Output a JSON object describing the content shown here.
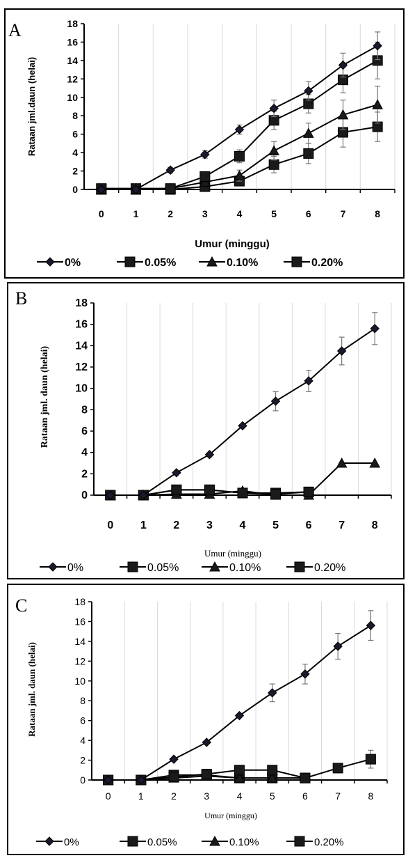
{
  "panels": [
    {
      "label": "A",
      "chart_data": {
        "type": "line",
        "ylabel": "Rataan jml.daun (helai)",
        "xlabel": "Umur (minggu)",
        "x": [
          0,
          1,
          2,
          3,
          4,
          5,
          6,
          7,
          8
        ],
        "yticks": [
          "0",
          "2",
          "4",
          "6",
          "8",
          "10",
          "12",
          "14",
          "16",
          "18"
        ],
        "ylim": [
          0,
          18
        ],
        "grid": "vertical",
        "legend_position": "bottom",
        "series": [
          {
            "name": "0%",
            "marker": "diamond",
            "values": [
              0,
              0,
              2.1,
              3.8,
              6.5,
              8.8,
              10.7,
              13.5,
              15.6
            ],
            "errors": [
              0,
              0,
              0.3,
              0.4,
              0.5,
              0.9,
              1.0,
              1.3,
              1.5
            ]
          },
          {
            "name": "0.05%",
            "marker": "square",
            "values": [
              0.1,
              0.1,
              0.1,
              1.4,
              3.6,
              7.5,
              9.3,
              11.9,
              14.0
            ],
            "errors": [
              0,
              0,
              0,
              0.4,
              0.7,
              1.0,
              1.0,
              1.4,
              2.0
            ]
          },
          {
            "name": "0.10%",
            "marker": "triangle",
            "values": [
              0,
              0,
              0.1,
              0.8,
              1.5,
              4.2,
              6.1,
              8.1,
              9.2
            ],
            "errors": [
              0,
              0,
              0,
              0.3,
              0.6,
              1.0,
              1.1,
              1.6,
              2.0
            ]
          },
          {
            "name": "0.20%",
            "marker": "square",
            "values": [
              0,
              0,
              0,
              0.3,
              0.9,
              2.7,
              3.9,
              6.2,
              6.8
            ],
            "errors": [
              0,
              0,
              0,
              0.2,
              0.5,
              0.9,
              1.1,
              1.6,
              1.6
            ]
          }
        ]
      }
    },
    {
      "label": "B",
      "chart_data": {
        "type": "line",
        "ylabel": "Rataan jml. daun (helai)",
        "xlabel": "Umur (minggu)",
        "x": [
          0,
          1,
          2,
          3,
          4,
          5,
          6,
          7,
          8
        ],
        "yticks": [
          "0",
          "2",
          "4",
          "6",
          "8",
          "10",
          "12",
          "14",
          "16",
          "18"
        ],
        "ylim": [
          0,
          18
        ],
        "grid": "vertical",
        "legend_position": "bottom",
        "series": [
          {
            "name": "0%",
            "marker": "diamond",
            "values": [
              0,
              0,
              2.1,
              3.8,
              6.5,
              8.8,
              10.7,
              13.5,
              15.6
            ],
            "errors": [
              0,
              0,
              0,
              0,
              0,
              0.9,
              1.0,
              1.3,
              1.5
            ]
          },
          {
            "name": "0.05%",
            "marker": "square",
            "values": [
              0,
              0,
              0.5,
              0.5,
              0.2,
              0.1,
              0.3,
              null,
              null
            ],
            "errors": [
              0,
              0,
              0,
              0,
              0,
              0,
              0,
              0,
              0
            ]
          },
          {
            "name": "0.10%",
            "marker": "triangle",
            "values": [
              0,
              0,
              0.1,
              0.1,
              0.4,
              0,
              0,
              3.0,
              3.0
            ],
            "errors": [
              0,
              0,
              0,
              0,
              0,
              0,
              0,
              0,
              0
            ]
          },
          {
            "name": "0.20%",
            "marker": "square",
            "values": [
              0,
              0,
              0.5,
              0.5,
              0.2,
              0.2,
              0.3,
              null,
              null
            ],
            "errors": [
              0,
              0,
              0,
              0,
              0,
              0,
              0,
              0,
              0
            ]
          }
        ]
      }
    },
    {
      "label": "C",
      "chart_data": {
        "type": "line",
        "ylabel": "Rataan jml. daun (helai)",
        "xlabel": "Umur (minggu)",
        "x": [
          0,
          1,
          2,
          3,
          4,
          5,
          6,
          7,
          8
        ],
        "yticks": [
          "0",
          "2",
          "4",
          "6",
          "8",
          "10",
          "12",
          "14",
          "16",
          "18"
        ],
        "ylim": [
          0,
          18
        ],
        "grid": "vertical",
        "legend_position": "bottom",
        "series": [
          {
            "name": "0%",
            "marker": "diamond",
            "values": [
              0,
              0,
              2.1,
              3.8,
              6.5,
              8.8,
              10.7,
              13.5,
              15.6
            ],
            "errors": [
              0,
              0,
              0,
              0,
              0,
              0.9,
              1.0,
              1.3,
              1.5
            ]
          },
          {
            "name": "0.05%",
            "marker": "square",
            "values": [
              0,
              0,
              0.3,
              0.6,
              1.0,
              1.0,
              0.2,
              1.2,
              2.1
            ],
            "errors": [
              0,
              0,
              0,
              0,
              0,
              0,
              0,
              0,
              0.9
            ]
          },
          {
            "name": "0.10%",
            "marker": "triangle",
            "values": [
              0,
              0,
              0.2,
              0.4,
              0.2,
              0.2,
              0.2,
              null,
              null
            ],
            "errors": [
              0,
              0,
              0,
              0,
              0,
              0,
              0,
              0,
              0
            ]
          },
          {
            "name": "0.20%",
            "marker": "square",
            "values": [
              0,
              0,
              0.5,
              0.5,
              0.2,
              0.2,
              0.2,
              null,
              null
            ],
            "errors": [
              0,
              0,
              0,
              0,
              0,
              0,
              0,
              0,
              0
            ]
          }
        ]
      }
    }
  ]
}
